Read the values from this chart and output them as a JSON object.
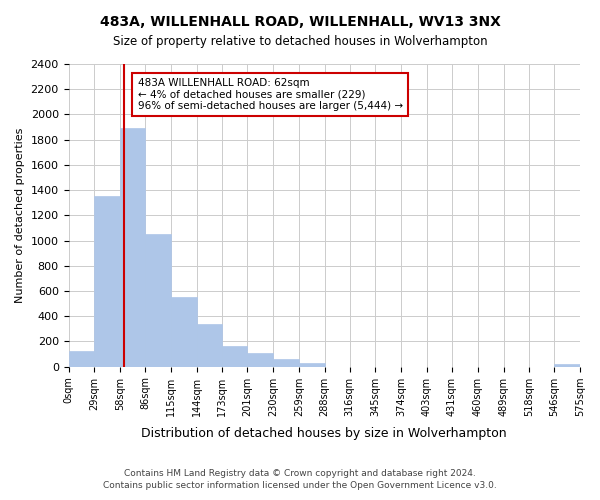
{
  "title": "483A, WILLENHALL ROAD, WILLENHALL, WV13 3NX",
  "subtitle": "Size of property relative to detached houses in Wolverhampton",
  "xlabel": "Distribution of detached houses by size in Wolverhampton",
  "ylabel": "Number of detached properties",
  "bar_color": "#aec6e8",
  "bar_edge_color": "#aec6e8",
  "bin_edges": [
    0,
    29,
    58,
    86,
    115,
    144,
    173,
    201,
    230,
    259,
    288,
    316,
    345,
    374,
    403,
    431,
    460,
    489,
    518,
    546,
    575
  ],
  "bar_heights": [
    125,
    1350,
    1890,
    1050,
    550,
    340,
    165,
    110,
    60,
    30,
    0,
    0,
    0,
    0,
    0,
    0,
    0,
    0,
    0,
    25
  ],
  "tick_labels": [
    "0sqm",
    "29sqm",
    "58sqm",
    "86sqm",
    "115sqm",
    "144sqm",
    "173sqm",
    "201sqm",
    "230sqm",
    "259sqm",
    "288sqm",
    "316sqm",
    "345sqm",
    "374sqm",
    "403sqm",
    "431sqm",
    "460sqm",
    "489sqm",
    "518sqm",
    "546sqm",
    "575sqm"
  ],
  "ylim": [
    0,
    2400
  ],
  "yticks": [
    0,
    200,
    400,
    600,
    800,
    1000,
    1200,
    1400,
    1600,
    1800,
    2000,
    2200,
    2400
  ],
  "vline_x": 62,
  "vline_color": "#cc0000",
  "annotation_text": "483A WILLENHALL ROAD: 62sqm\n← 4% of detached houses are smaller (229)\n96% of semi-detached houses are larger (5,444) →",
  "annotation_box_color": "#ffffff",
  "annotation_border_color": "#cc0000",
  "footnote1": "Contains HM Land Registry data © Crown copyright and database right 2024.",
  "footnote2": "Contains public sector information licensed under the Open Government Licence v3.0.",
  "bg_color": "#ffffff",
  "grid_color": "#cccccc"
}
